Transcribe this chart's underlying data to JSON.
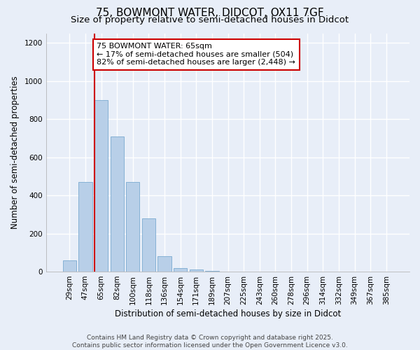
{
  "title_line1": "75, BOWMONT WATER, DIDCOT, OX11 7GF",
  "title_line2": "Size of property relative to semi-detached houses in Didcot",
  "xlabel": "Distribution of semi-detached houses by size in Didcot",
  "ylabel": "Number of semi-detached properties",
  "categories": [
    "29sqm",
    "47sqm",
    "65sqm",
    "82sqm",
    "100sqm",
    "118sqm",
    "136sqm",
    "154sqm",
    "171sqm",
    "189sqm",
    "207sqm",
    "225sqm",
    "243sqm",
    "260sqm",
    "278sqm",
    "296sqm",
    "314sqm",
    "332sqm",
    "349sqm",
    "367sqm",
    "385sqm"
  ],
  "values": [
    60,
    470,
    900,
    710,
    470,
    280,
    80,
    20,
    10,
    5,
    0,
    0,
    0,
    0,
    0,
    0,
    0,
    0,
    0,
    0,
    0
  ],
  "bar_color": "#b8cfe8",
  "bar_edge_color": "#7aaad0",
  "highlight_bar_index": 2,
  "annotation_text": "75 BOWMONT WATER: 65sqm\n← 17% of semi-detached houses are smaller (504)\n82% of semi-detached houses are larger (2,448) →",
  "annotation_box_facecolor": "#ffffff",
  "annotation_box_edgecolor": "#cc0000",
  "vertical_line_color": "#cc0000",
  "ylim": [
    0,
    1250
  ],
  "yticks": [
    0,
    200,
    400,
    600,
    800,
    1000,
    1200
  ],
  "footer_line1": "Contains HM Land Registry data © Crown copyright and database right 2025.",
  "footer_line2": "Contains public sector information licensed under the Open Government Licence v3.0.",
  "fig_background_color": "#e8eef8",
  "plot_background_color": "#e8eef8",
  "grid_color": "#ffffff",
  "title_fontsize": 11,
  "subtitle_fontsize": 9.5,
  "axis_label_fontsize": 8.5,
  "tick_fontsize": 7.5,
  "annotation_fontsize": 8,
  "footer_fontsize": 6.5
}
